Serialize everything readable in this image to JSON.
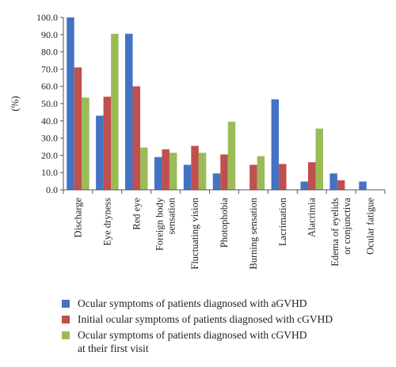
{
  "chart_data": {
    "type": "bar",
    "ylabel": "(%)",
    "ylim": [
      0,
      100
    ],
    "yticks": [
      "0.0",
      "10.0",
      "20.0",
      "30.0",
      "40.0",
      "50.0",
      "60.0",
      "70.0",
      "80.0",
      "90.0",
      "100.0"
    ],
    "grid": false,
    "legend_position": "bottom",
    "categories": [
      "Discharge",
      "Eye dryness",
      "Red eye",
      "Foreign body\nsensation",
      "Fluctuating vision",
      "Photophobia",
      "Burning sensation",
      "Lacrimation",
      "Alacrimia",
      "Edema of eyelids\nor conjunctiva",
      "Ocular fatigue"
    ],
    "series": [
      {
        "name": "Ocular symptoms of patients diagnosed with aGVHD",
        "color": "#4472C4",
        "values": [
          100,
          43,
          90.5,
          19,
          14.5,
          9.5,
          0,
          52.5,
          4.8,
          9.5,
          4.8
        ]
      },
      {
        "name": "Initial ocular symptoms of patients diagnosed with cGVHD",
        "color": "#C0504D",
        "values": [
          71,
          54,
          60,
          23.5,
          25.5,
          20.5,
          14.5,
          15,
          16,
          5.5,
          0
        ]
      },
      {
        "name": "Ocular symptoms of patients diagnosed with cGVHD\nat their first visit",
        "color": "#9BBB59",
        "values": [
          53.5,
          90.5,
          24.5,
          21.5,
          21.5,
          39.5,
          19.5,
          0,
          35.5,
          0,
          0
        ]
      }
    ]
  }
}
